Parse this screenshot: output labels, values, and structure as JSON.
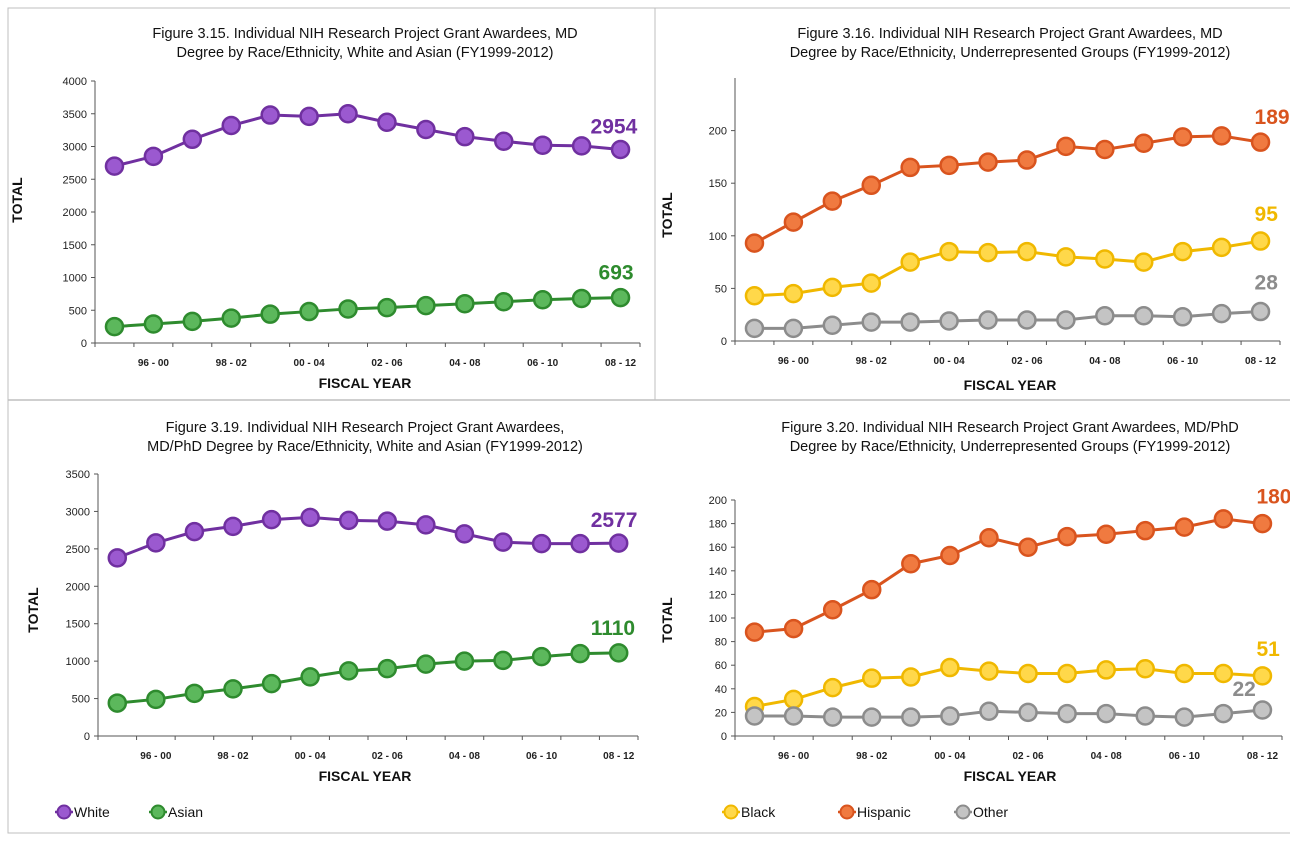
{
  "colors": {
    "white": "#7030a0",
    "white_fill": "#9b59d0",
    "asian": "#2e8b2e",
    "asian_fill": "#5cb85c",
    "black": "#f0b800",
    "black_fill": "#ffd84a",
    "hispanic": "#d9541e",
    "hispanic_fill": "#f07a40",
    "other": "#8c8c8c",
    "other_fill": "#c4c4c4",
    "axis": "#555555",
    "border": "#bfbfbf"
  },
  "legend": {
    "left": [
      {
        "label": "White",
        "color_key": "white"
      },
      {
        "label": "Asian",
        "color_key": "asian"
      }
    ],
    "right": [
      {
        "label": "Black",
        "color_key": "black"
      },
      {
        "label": "Hispanic",
        "color_key": "hispanic"
      },
      {
        "label": "Other",
        "color_key": "other"
      }
    ]
  },
  "chart_data": [
    {
      "type": "line",
      "title": "Figure 3.15. Individual NIH Research Project Grant Awardees, MD\nDegree by Race/Ethnicity, White and Asian (FY1999-2012)",
      "xlabel": "FISCAL YEAR",
      "ylabel": "TOTAL",
      "ylim": [
        0,
        4000
      ],
      "yticks": [
        0,
        500,
        1000,
        1500,
        2000,
        2500,
        3000,
        3500,
        4000
      ],
      "xtick_labels": [
        "96 - 00",
        "98 - 02",
        "00 - 04",
        "02 - 06",
        "04 - 08",
        "06 - 10",
        "08 - 12"
      ],
      "series": [
        {
          "name": "White",
          "color_key": "white",
          "values": [
            2700,
            2850,
            3110,
            3320,
            3480,
            3460,
            3500,
            3370,
            3260,
            3150,
            3080,
            3020,
            3010,
            2954
          ],
          "end_label": "2954"
        },
        {
          "name": "Asian",
          "color_key": "asian",
          "values": [
            250,
            290,
            330,
            380,
            440,
            480,
            520,
            540,
            570,
            600,
            630,
            660,
            680,
            693
          ],
          "end_label": "693"
        }
      ]
    },
    {
      "type": "line",
      "title": "Figure 3.16. Individual NIH Research Project Grant Awardees, MD\nDegree by Race/Ethnicity, Underrepresented Groups (FY1999-2012)",
      "xlabel": "FISCAL YEAR",
      "ylabel": "TOTAL",
      "ylim": [
        0,
        250
      ],
      "yticks": [
        0,
        50,
        100,
        150,
        200
      ],
      "xtick_labels": [
        "96 - 00",
        "98 - 02",
        "00 - 04",
        "02 - 06",
        "04 - 08",
        "06 - 10",
        "08 - 12"
      ],
      "series": [
        {
          "name": "Hispanic",
          "color_key": "hispanic",
          "values": [
            93,
            113,
            133,
            148,
            165,
            167,
            170,
            172,
            185,
            182,
            188,
            194,
            195,
            189
          ],
          "end_label": "189"
        },
        {
          "name": "Black",
          "color_key": "black",
          "values": [
            43,
            45,
            51,
            55,
            75,
            85,
            84,
            85,
            80,
            78,
            75,
            85,
            89,
            95
          ],
          "end_label": "95"
        },
        {
          "name": "Other",
          "color_key": "other",
          "values": [
            12,
            12,
            15,
            18,
            18,
            19,
            20,
            20,
            20,
            24,
            24,
            23,
            26,
            28
          ],
          "end_label": "28"
        }
      ]
    },
    {
      "type": "line",
      "title": "Figure 3.19. Individual NIH Research Project Grant Awardees,\nMD/PhD Degree by Race/Ethnicity, White and Asian (FY1999-2012)",
      "xlabel": "FISCAL YEAR",
      "ylabel": "TOTAL",
      "ylim": [
        0,
        3500
      ],
      "yticks": [
        0,
        500,
        1000,
        1500,
        2000,
        2500,
        3000,
        3500
      ],
      "xtick_labels": [
        "96 - 00",
        "98 - 02",
        "00 - 04",
        "02 - 06",
        "04 - 08",
        "06 - 10",
        "08 - 12"
      ],
      "series": [
        {
          "name": "White",
          "color_key": "white",
          "values": [
            2380,
            2580,
            2730,
            2800,
            2890,
            2920,
            2880,
            2870,
            2820,
            2700,
            2590,
            2570,
            2570,
            2577
          ],
          "end_label": "2577"
        },
        {
          "name": "Asian",
          "color_key": "asian",
          "values": [
            440,
            490,
            570,
            630,
            700,
            790,
            870,
            900,
            960,
            1000,
            1010,
            1060,
            1100,
            1110
          ],
          "end_label": "1110"
        }
      ]
    },
    {
      "type": "line",
      "title": "Figure 3.20. Individual NIH Research Project Grant Awardees, MD/PhD\nDegree by Race/Ethnicity, Underrepresented Groups (FY1999-2012)",
      "xlabel": "FISCAL YEAR",
      "ylabel": "TOTAL",
      "ylim": [
        0,
        200
      ],
      "yticks": [
        0,
        20,
        40,
        60,
        80,
        100,
        120,
        140,
        160,
        180,
        200
      ],
      "xtick_labels": [
        "96 - 00",
        "98 - 02",
        "00 - 04",
        "02 - 06",
        "04 - 08",
        "06 - 10",
        "08 - 12"
      ],
      "series": [
        {
          "name": "Hispanic",
          "color_key": "hispanic",
          "values": [
            88,
            91,
            107,
            124,
            146,
            153,
            168,
            160,
            169,
            171,
            174,
            177,
            184,
            180
          ],
          "end_label": "180"
        },
        {
          "name": "Black",
          "color_key": "black",
          "values": [
            25,
            31,
            41,
            49,
            50,
            58,
            55,
            53,
            53,
            56,
            57,
            53,
            53,
            51
          ],
          "end_label": "51"
        },
        {
          "name": "Other",
          "color_key": "other",
          "values": [
            17,
            17,
            16,
            16,
            16,
            17,
            21,
            20,
            19,
            19,
            17,
            16,
            19,
            22
          ],
          "end_label": "22"
        }
      ]
    }
  ]
}
